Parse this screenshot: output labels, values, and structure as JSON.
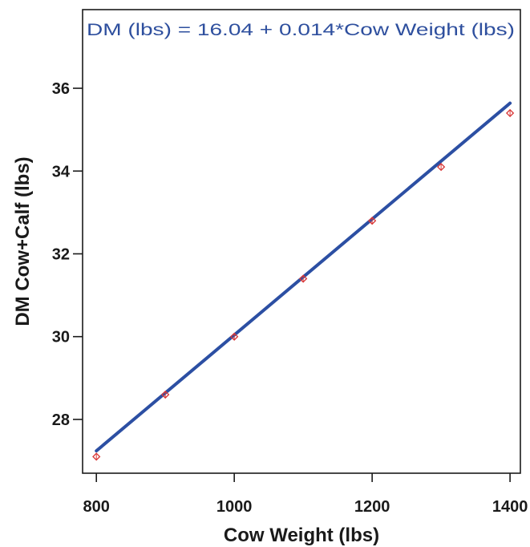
{
  "chart_data": {
    "type": "scatter",
    "xlabel": "Cow Weight (lbs)",
    "ylabel": "DM Cow+Calf (lbs)",
    "annotation": "DM (lbs) = 16.04 + 0.014*Cow Weight (lbs)",
    "xlim": [
      780,
      1415
    ],
    "ylim": [
      26.7,
      37.9
    ],
    "x_ticks": [
      800,
      1000,
      1200,
      1400
    ],
    "y_ticks": [
      28,
      30,
      32,
      34,
      36
    ],
    "x_tick_labels": [
      "800",
      "1000",
      "1200",
      "1400"
    ],
    "y_tick_labels": [
      "28",
      "30",
      "32",
      "34",
      "36"
    ],
    "grid": false,
    "series": [
      {
        "x": [
          800,
          900,
          1000,
          1100,
          1200,
          1300,
          1400
        ],
        "y": [
          27.1,
          28.6,
          30.0,
          31.4,
          32.8,
          34.1,
          35.4
        ]
      }
    ],
    "fit_line": {
      "intercept": 16.04,
      "slope": 0.014,
      "x_range": [
        800,
        1400
      ]
    },
    "colors": {
      "points": "#d93838",
      "line": "#2c4fa3",
      "annotation": "#2e4f9e",
      "axis": "#1a1a1a"
    }
  }
}
